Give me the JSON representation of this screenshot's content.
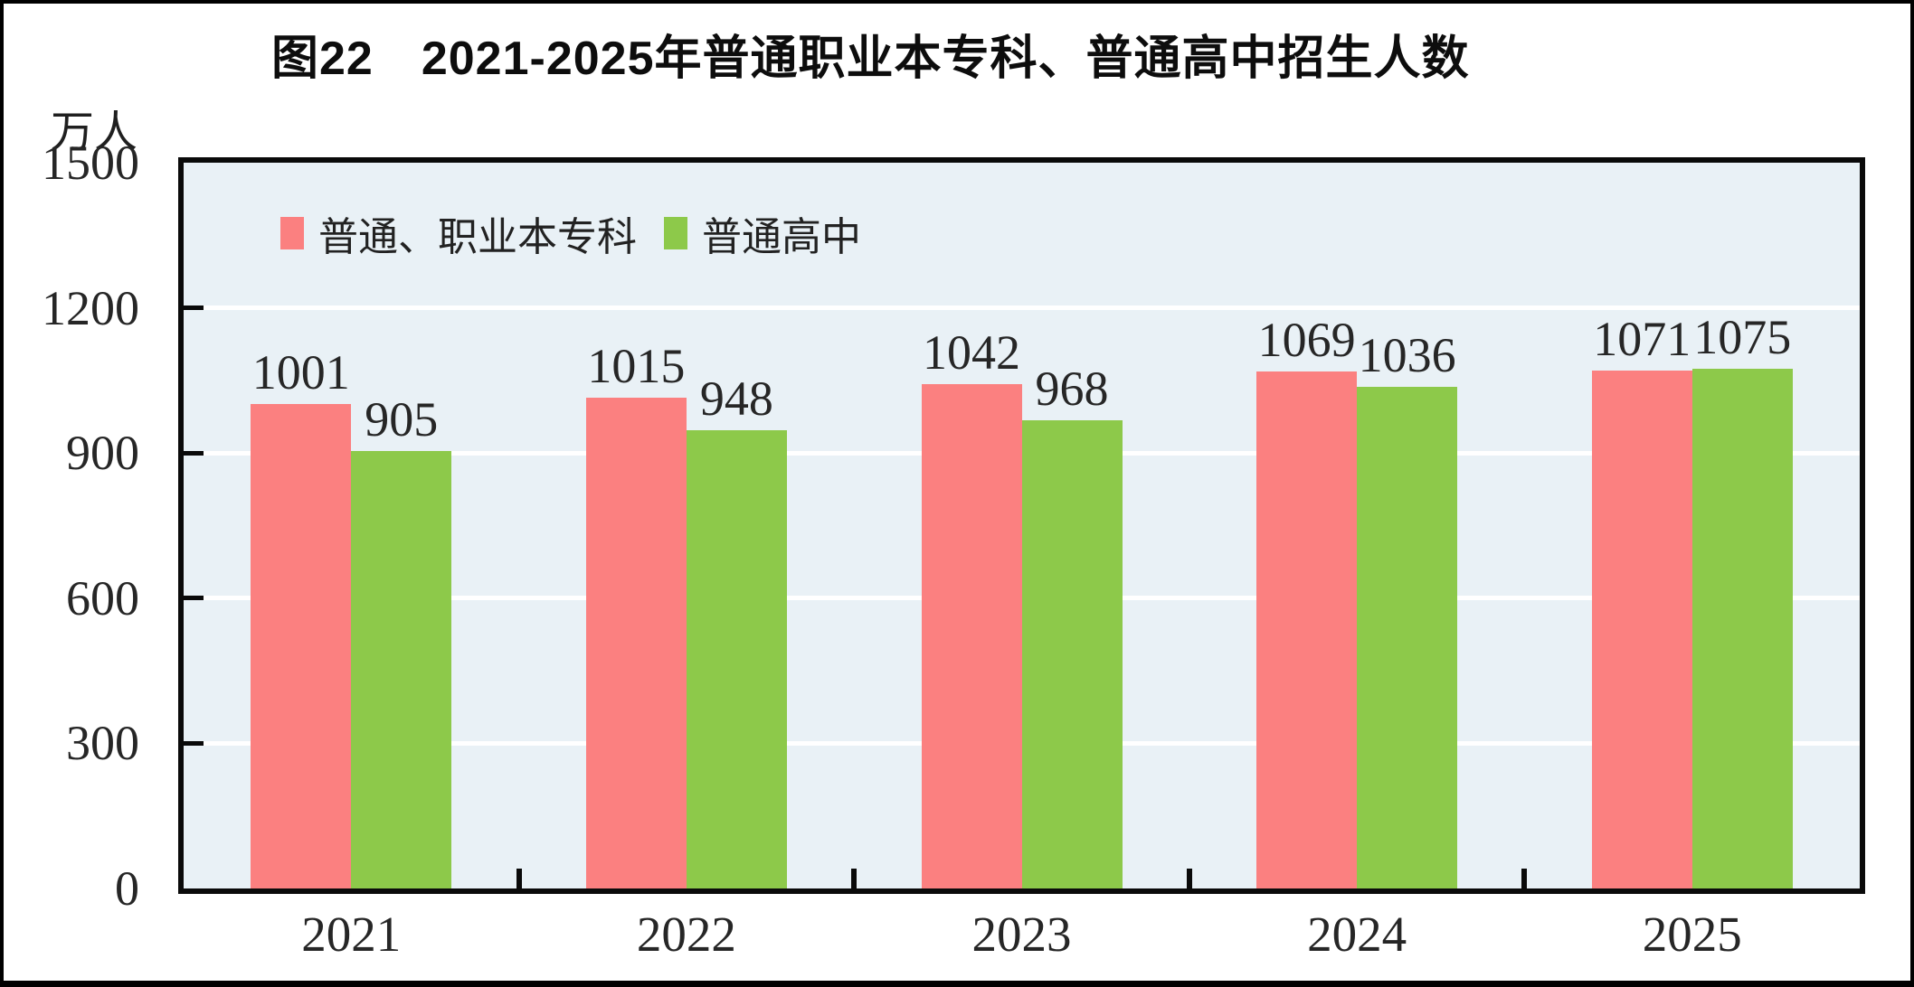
{
  "figure": {
    "title": "图22　2021-2025年普通职业本专科、普通高中招生人数",
    "unit_label": "万人"
  },
  "chart_data": {
    "type": "bar",
    "title": "图22　2021-2025年普通职业本专科、普通高中招生人数",
    "xlabel": "",
    "ylabel": "万人",
    "categories": [
      "2021",
      "2022",
      "2023",
      "2024",
      "2025"
    ],
    "series": [
      {
        "name": "普通、职业本专科",
        "color": "#FB8080",
        "values": [
          1001,
          1015,
          1042,
          1069,
          1071
        ]
      },
      {
        "name": "普通高中",
        "color": "#8DC94A",
        "values": [
          905,
          948,
          968,
          1036,
          1075
        ]
      }
    ],
    "ylim": [
      0,
      1500
    ],
    "yticks": [
      0,
      300,
      600,
      900,
      1200,
      1500
    ],
    "grid": true,
    "gridline_color": "#FFFFFF",
    "plot_bg": "#E9F1F6",
    "legend_position": "top-left-inside",
    "value_labels": true
  }
}
